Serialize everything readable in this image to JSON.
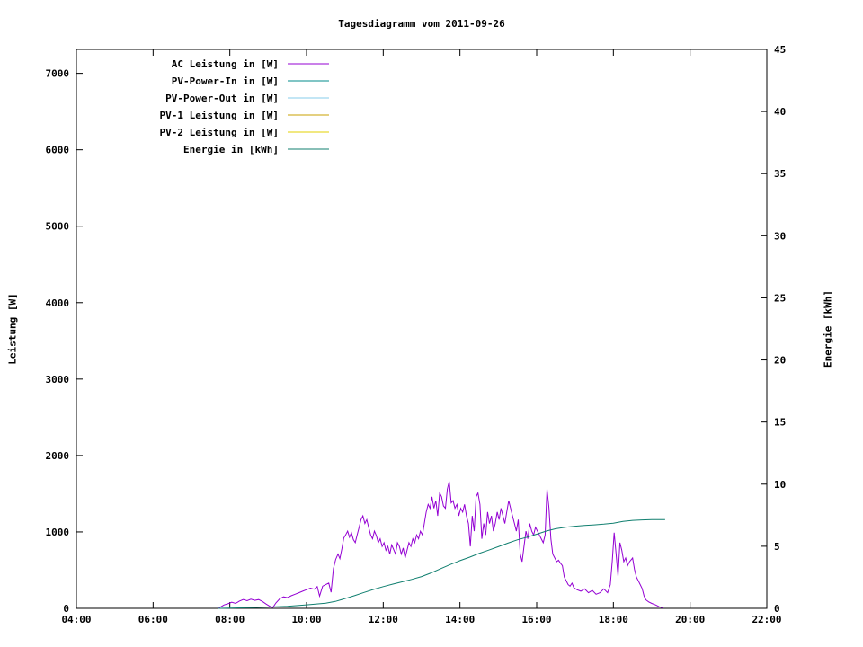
{
  "page": {
    "background": "#ffffff",
    "text_color": "#000000"
  },
  "chart_data": {
    "type": "line",
    "title": "Tagesdiagramm vom 2011-09-26",
    "ylabel_left": "Leistung [W]",
    "ylabel_right": "Energie [kWh]",
    "x_range": [
      4,
      22
    ],
    "x_ticks": [
      "04:00",
      "06:00",
      "08:00",
      "10:00",
      "12:00",
      "14:00",
      "16:00",
      "18:00",
      "20:00",
      "22:00"
    ],
    "y_left_range": [
      0,
      7313
    ],
    "y_left_ticks": [
      0,
      1000,
      2000,
      3000,
      4000,
      5000,
      6000,
      7000
    ],
    "y_right_range": [
      0,
      45
    ],
    "y_right_ticks": [
      0,
      5,
      10,
      15,
      20,
      25,
      30,
      35,
      40,
      45
    ],
    "legend_position": "top-left-inside",
    "grid": false,
    "series": [
      {
        "name": "AC Leistung in [W]",
        "color": "#9400d3",
        "axis": "left",
        "points": [
          [
            7.7,
            0
          ],
          [
            7.78,
            25
          ],
          [
            7.85,
            45
          ],
          [
            7.95,
            60
          ],
          [
            8.05,
            80
          ],
          [
            8.15,
            65
          ],
          [
            8.25,
            95
          ],
          [
            8.35,
            115
          ],
          [
            8.45,
            100
          ],
          [
            8.55,
            120
          ],
          [
            8.65,
            105
          ],
          [
            8.75,
            115
          ],
          [
            8.85,
            90
          ],
          [
            8.95,
            55
          ],
          [
            9.05,
            25
          ],
          [
            9.12,
            10
          ],
          [
            9.2,
            70
          ],
          [
            9.3,
            125
          ],
          [
            9.4,
            150
          ],
          [
            9.5,
            140
          ],
          [
            9.6,
            165
          ],
          [
            9.7,
            185
          ],
          [
            9.8,
            205
          ],
          [
            9.9,
            225
          ],
          [
            10.0,
            245
          ],
          [
            10.1,
            265
          ],
          [
            10.2,
            250
          ],
          [
            10.28,
            285
          ],
          [
            10.34,
            160
          ],
          [
            10.42,
            290
          ],
          [
            10.5,
            310
          ],
          [
            10.58,
            330
          ],
          [
            10.64,
            210
          ],
          [
            10.7,
            520
          ],
          [
            10.76,
            640
          ],
          [
            10.82,
            710
          ],
          [
            10.87,
            650
          ],
          [
            10.92,
            780
          ],
          [
            10.97,
            920
          ],
          [
            11.02,
            960
          ],
          [
            11.07,
            1010
          ],
          [
            11.12,
            930
          ],
          [
            11.17,
            990
          ],
          [
            11.22,
            900
          ],
          [
            11.27,
            860
          ],
          [
            11.32,
            960
          ],
          [
            11.37,
            1060
          ],
          [
            11.42,
            1160
          ],
          [
            11.47,
            1210
          ],
          [
            11.52,
            1110
          ],
          [
            11.57,
            1160
          ],
          [
            11.62,
            1060
          ],
          [
            11.67,
            960
          ],
          [
            11.72,
            910
          ],
          [
            11.77,
            1010
          ],
          [
            11.82,
            950
          ],
          [
            11.87,
            860
          ],
          [
            11.92,
            910
          ],
          [
            11.97,
            810
          ],
          [
            12.02,
            860
          ],
          [
            12.07,
            760
          ],
          [
            12.12,
            810
          ],
          [
            12.17,
            710
          ],
          [
            12.22,
            830
          ],
          [
            12.27,
            770
          ],
          [
            12.32,
            710
          ],
          [
            12.37,
            860
          ],
          [
            12.42,
            810
          ],
          [
            12.47,
            710
          ],
          [
            12.52,
            790
          ],
          [
            12.57,
            660
          ],
          [
            12.62,
            760
          ],
          [
            12.67,
            860
          ],
          [
            12.72,
            810
          ],
          [
            12.77,
            910
          ],
          [
            12.82,
            860
          ],
          [
            12.87,
            960
          ],
          [
            12.92,
            910
          ],
          [
            12.97,
            1010
          ],
          [
            13.02,
            960
          ],
          [
            13.07,
            1110
          ],
          [
            13.12,
            1260
          ],
          [
            13.17,
            1360
          ],
          [
            13.22,
            1310
          ],
          [
            13.27,
            1460
          ],
          [
            13.32,
            1310
          ],
          [
            13.37,
            1410
          ],
          [
            13.42,
            1210
          ],
          [
            13.47,
            1510
          ],
          [
            13.52,
            1460
          ],
          [
            13.57,
            1340
          ],
          [
            13.62,
            1310
          ],
          [
            13.67,
            1560
          ],
          [
            13.72,
            1660
          ],
          [
            13.77,
            1380
          ],
          [
            13.82,
            1410
          ],
          [
            13.87,
            1310
          ],
          [
            13.92,
            1360
          ],
          [
            13.97,
            1210
          ],
          [
            14.02,
            1310
          ],
          [
            14.07,
            1260
          ],
          [
            14.12,
            1360
          ],
          [
            14.17,
            1210
          ],
          [
            14.22,
            1110
          ],
          [
            14.27,
            810
          ],
          [
            14.32,
            1210
          ],
          [
            14.37,
            1010
          ],
          [
            14.42,
            1460
          ],
          [
            14.47,
            1510
          ],
          [
            14.52,
            1360
          ],
          [
            14.57,
            910
          ],
          [
            14.62,
            1110
          ],
          [
            14.67,
            960
          ],
          [
            14.72,
            1260
          ],
          [
            14.77,
            1110
          ],
          [
            14.82,
            1210
          ],
          [
            14.87,
            1010
          ],
          [
            14.92,
            1110
          ],
          [
            14.97,
            1260
          ],
          [
            15.02,
            1160
          ],
          [
            15.07,
            1310
          ],
          [
            15.12,
            1210
          ],
          [
            15.17,
            1110
          ],
          [
            15.22,
            1260
          ],
          [
            15.27,
            1410
          ],
          [
            15.32,
            1310
          ],
          [
            15.37,
            1210
          ],
          [
            15.42,
            1110
          ],
          [
            15.47,
            1010
          ],
          [
            15.52,
            1160
          ],
          [
            15.57,
            710
          ],
          [
            15.62,
            610
          ],
          [
            15.67,
            810
          ],
          [
            15.72,
            1010
          ],
          [
            15.77,
            910
          ],
          [
            15.82,
            1110
          ],
          [
            15.87,
            1010
          ],
          [
            15.92,
            960
          ],
          [
            15.97,
            1060
          ],
          [
            16.02,
            1010
          ],
          [
            16.07,
            960
          ],
          [
            16.12,
            910
          ],
          [
            16.17,
            860
          ],
          [
            16.22,
            960
          ],
          [
            16.27,
            1560
          ],
          [
            16.32,
            1310
          ],
          [
            16.37,
            910
          ],
          [
            16.42,
            710
          ],
          [
            16.47,
            660
          ],
          [
            16.52,
            610
          ],
          [
            16.57,
            630
          ],
          [
            16.62,
            590
          ],
          [
            16.67,
            560
          ],
          [
            16.72,
            410
          ],
          [
            16.77,
            360
          ],
          [
            16.82,
            310
          ],
          [
            16.87,
            290
          ],
          [
            16.92,
            330
          ],
          [
            16.97,
            270
          ],
          [
            17.05,
            245
          ],
          [
            17.15,
            225
          ],
          [
            17.25,
            255
          ],
          [
            17.35,
            205
          ],
          [
            17.45,
            235
          ],
          [
            17.55,
            185
          ],
          [
            17.65,
            205
          ],
          [
            17.75,
            255
          ],
          [
            17.85,
            205
          ],
          [
            17.92,
            310
          ],
          [
            17.97,
            620
          ],
          [
            18.02,
            990
          ],
          [
            18.07,
            720
          ],
          [
            18.12,
            420
          ],
          [
            18.17,
            860
          ],
          [
            18.22,
            760
          ],
          [
            18.27,
            610
          ],
          [
            18.32,
            660
          ],
          [
            18.37,
            560
          ],
          [
            18.42,
            610
          ],
          [
            18.5,
            660
          ],
          [
            18.55,
            510
          ],
          [
            18.6,
            410
          ],
          [
            18.65,
            360
          ],
          [
            18.7,
            310
          ],
          [
            18.75,
            260
          ],
          [
            18.8,
            160
          ],
          [
            18.85,
            110
          ],
          [
            18.92,
            85
          ],
          [
            19.0,
            65
          ],
          [
            19.1,
            45
          ],
          [
            19.2,
            20
          ],
          [
            19.3,
            5
          ]
        ]
      },
      {
        "name": "PV-Power-In in [W]",
        "color": "#008b8b",
        "axis": "left",
        "points": []
      },
      {
        "name": "PV-Power-Out in [W]",
        "color": "#87ceeb",
        "axis": "left",
        "points": []
      },
      {
        "name": "PV-1 Leistung in [W]",
        "color": "#c8a000",
        "axis": "left",
        "points": []
      },
      {
        "name": "PV-2 Leistung in [W]",
        "color": "#e3d200",
        "axis": "left",
        "points": []
      },
      {
        "name": "Energie in [kWh]",
        "color": "#107f6f",
        "axis": "right",
        "points": [
          [
            7.7,
            0.0
          ],
          [
            8.5,
            0.05
          ],
          [
            9.0,
            0.1
          ],
          [
            9.5,
            0.17
          ],
          [
            10.0,
            0.28
          ],
          [
            10.5,
            0.42
          ],
          [
            10.75,
            0.56
          ],
          [
            11.0,
            0.78
          ],
          [
            11.25,
            1.02
          ],
          [
            11.5,
            1.28
          ],
          [
            11.75,
            1.53
          ],
          [
            12.0,
            1.75
          ],
          [
            12.25,
            1.95
          ],
          [
            12.5,
            2.14
          ],
          [
            12.75,
            2.34
          ],
          [
            13.0,
            2.56
          ],
          [
            13.25,
            2.86
          ],
          [
            13.5,
            3.2
          ],
          [
            13.75,
            3.53
          ],
          [
            14.0,
            3.84
          ],
          [
            14.25,
            4.12
          ],
          [
            14.5,
            4.42
          ],
          [
            14.75,
            4.69
          ],
          [
            15.0,
            4.96
          ],
          [
            15.25,
            5.25
          ],
          [
            15.5,
            5.52
          ],
          [
            15.75,
            5.73
          ],
          [
            16.0,
            5.97
          ],
          [
            16.25,
            6.22
          ],
          [
            16.5,
            6.41
          ],
          [
            16.75,
            6.53
          ],
          [
            17.0,
            6.61
          ],
          [
            17.25,
            6.67
          ],
          [
            17.5,
            6.72
          ],
          [
            17.75,
            6.78
          ],
          [
            18.0,
            6.86
          ],
          [
            18.25,
            7.0
          ],
          [
            18.5,
            7.08
          ],
          [
            18.75,
            7.12
          ],
          [
            19.0,
            7.14
          ],
          [
            19.35,
            7.15
          ]
        ]
      }
    ]
  }
}
